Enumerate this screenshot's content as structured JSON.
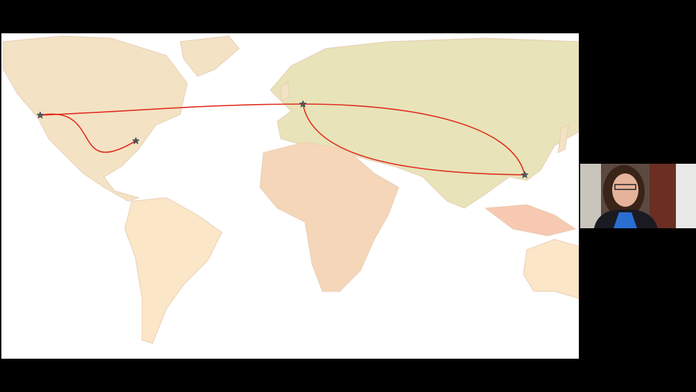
{
  "screen_share": {
    "background": "#ffffff",
    "land_colors": [
      "#f3e3c4",
      "#f6c9b0",
      "#e8e3b8",
      "#fbe6c8"
    ],
    "water_color": "#ffffff",
    "route_color": "#e02a1c",
    "marker_icon": "star-icon",
    "marker_color": "#555566"
  },
  "video_tile": {
    "participant_icon": "webcam-video",
    "shirt_color": "#2a6fd0"
  }
}
